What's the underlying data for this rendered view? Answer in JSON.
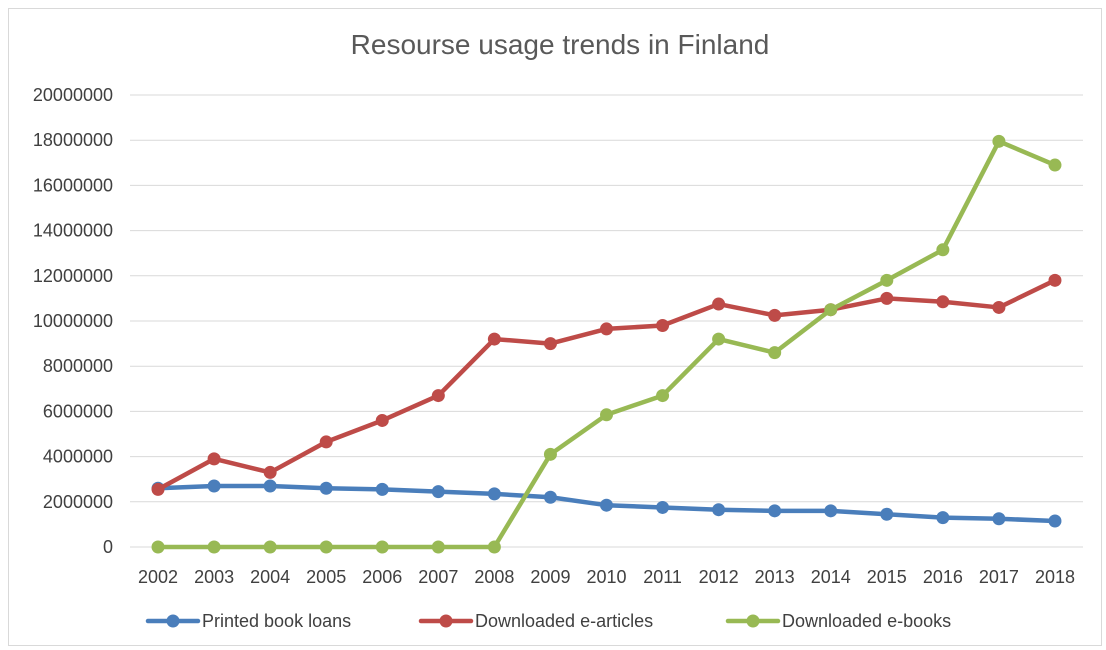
{
  "chart_data": {
    "type": "line",
    "title": "Resourse usage trends in Finland",
    "xlabel": "",
    "ylabel": "",
    "ylim": [
      0,
      20000000
    ],
    "y_ticks": [
      "0",
      "2000000",
      "4000000",
      "6000000",
      "8000000",
      "10000000",
      "12000000",
      "14000000",
      "16000000",
      "18000000",
      "20000000"
    ],
    "grid": true,
    "legend_position": "bottom",
    "categories": [
      "2002",
      "2003",
      "2004",
      "2005",
      "2006",
      "2007",
      "2008",
      "2009",
      "2010",
      "2011",
      "2012",
      "2013",
      "2014",
      "2015",
      "2016",
      "2017",
      "2018"
    ],
    "series": [
      {
        "name": "Printed book loans",
        "color": "#4a7ebb",
        "values": [
          2600000,
          2700000,
          2700000,
          2600000,
          2550000,
          2450000,
          2350000,
          2200000,
          1850000,
          1750000,
          1650000,
          1600000,
          1600000,
          1450000,
          1300000,
          1250000,
          1150000
        ]
      },
      {
        "name": "Downloaded e-articles",
        "color": "#be4b48",
        "values": [
          2550000,
          3900000,
          3300000,
          4650000,
          5600000,
          6700000,
          9200000,
          9000000,
          9650000,
          9800000,
          10750000,
          10250000,
          10500000,
          11000000,
          10850000,
          10600000,
          11800000
        ]
      },
      {
        "name": "Downloaded e-books",
        "color": "#98b954",
        "values": [
          0,
          0,
          0,
          0,
          0,
          0,
          0,
          4100000,
          5850000,
          6700000,
          9200000,
          8600000,
          10500000,
          11800000,
          13150000,
          17950000,
          16900000
        ]
      }
    ]
  }
}
